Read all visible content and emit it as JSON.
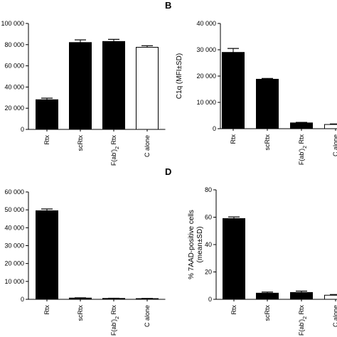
{
  "chart_data": [
    {
      "panel": "",
      "type": "bar",
      "categories": [
        "Rtx",
        "scRtx",
        "F(ab')2 Rtx",
        "C alone"
      ],
      "values": [
        28000,
        82000,
        83000,
        77500
      ],
      "errors": [
        1500,
        2500,
        2000,
        1500
      ],
      "fills": [
        "#000000",
        "#000000",
        "#000000",
        "#ffffff"
      ],
      "ylabel": "",
      "ylim": [
        0,
        100000
      ],
      "yticks": [
        "0",
        "20 000",
        "40 000",
        "60 000",
        "80 000",
        "100 000"
      ],
      "ytick_values": [
        0,
        20000,
        40000,
        60000,
        80000,
        100000
      ]
    },
    {
      "panel": "B",
      "type": "bar",
      "categories": [
        "Rtx",
        "scRtx",
        "F(ab')2 Rtx",
        "C alone"
      ],
      "values": [
        29000,
        18800,
        2200,
        1600
      ],
      "errors": [
        1500,
        300,
        200,
        200
      ],
      "fills": [
        "#000000",
        "#000000",
        "#000000",
        "#ffffff"
      ],
      "ylabel": "C1q (MFI±SD)",
      "ylim": [
        0,
        40000
      ],
      "yticks": [
        "0",
        "10 000",
        "20 000",
        "30 000",
        "40 000"
      ],
      "ytick_values": [
        0,
        10000,
        20000,
        30000,
        40000
      ]
    },
    {
      "panel": "",
      "type": "bar",
      "categories": [
        "Rtx",
        "scRtx",
        "F(ab')2 Rtx",
        "C alone"
      ],
      "values": [
        49500,
        700,
        500,
        400
      ],
      "errors": [
        1000,
        150,
        100,
        100
      ],
      "fills": [
        "#000000",
        "#000000",
        "#000000",
        "#000000"
      ],
      "ylabel": "",
      "ylim": [
        0,
        60000
      ],
      "yticks": [
        "0",
        "10 000",
        "20 000",
        "30 000",
        "40 000",
        "50 000",
        "60 000"
      ],
      "ytick_values": [
        0,
        10000,
        20000,
        30000,
        40000,
        50000,
        60000
      ]
    },
    {
      "panel": "D",
      "type": "bar",
      "categories": [
        "Rtx",
        "scRtx",
        "F(ab')2 Rtx",
        "C alone"
      ],
      "values": [
        59,
        4.5,
        5,
        3
      ],
      "errors": [
        1.2,
        0.8,
        1,
        0.5
      ],
      "fills": [
        "#000000",
        "#000000",
        "#000000",
        "#ffffff"
      ],
      "ylabel": "% 7AAD-positive cells (mean±SD)",
      "ylabel_lines": [
        "% 7AAD-positive cells",
        "(mean±SD)"
      ],
      "ylim": [
        0,
        80
      ],
      "yticks": [
        "0",
        "20",
        "40",
        "60",
        "80"
      ],
      "ytick_values": [
        0,
        20,
        40,
        60,
        80
      ]
    }
  ]
}
